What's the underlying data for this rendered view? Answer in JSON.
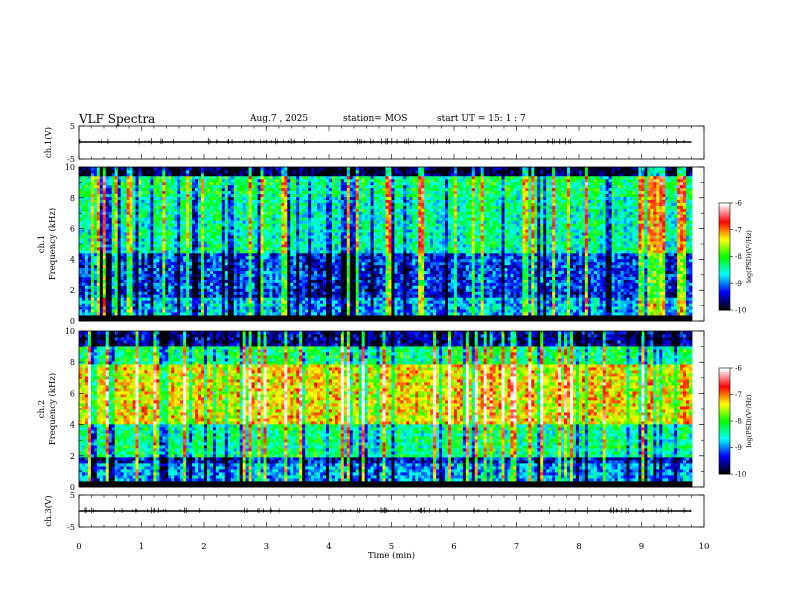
{
  "header": {
    "title": "VLF Spectra",
    "date": "Aug.7  , 2025",
    "station": "station= MOS",
    "start_ut": "start  UT  =   15: 1  : 7"
  },
  "colors": {
    "spectrogram_colormap": [
      "#000000",
      "#00007f",
      "#0000ff",
      "#0080ff",
      "#00ffff",
      "#00ff80",
      "#00ff00",
      "#80ff00",
      "#ffff00",
      "#ff8000",
      "#ff0000",
      "#ff8080",
      "#ffffff"
    ]
  },
  "chart_data": [
    {
      "type": "line",
      "name": "ch1-waveform",
      "ylabel": "ch.1(V)",
      "ylim": [
        -5,
        5
      ],
      "yticks": [
        "5",
        "-5"
      ],
      "x": [
        0,
        0.5,
        1,
        1.5,
        2,
        2.5,
        3,
        3.5,
        4,
        4.5,
        5,
        5.5,
        6,
        6.5,
        7,
        7.5,
        8,
        8.5,
        9,
        9.5,
        9.8
      ],
      "y": [
        0,
        0,
        0,
        0,
        0,
        0,
        0,
        0,
        0,
        0,
        0,
        0,
        0,
        0,
        0,
        0,
        0,
        0,
        0,
        0,
        0
      ]
    },
    {
      "type": "heatmap",
      "name": "ch1-spectrogram",
      "ylabel": "ch.1\nFrequency (kHz)",
      "ylim": [
        0,
        10
      ],
      "yticks": [
        "0",
        "2",
        "4",
        "6",
        "8",
        "10"
      ],
      "colorbar": {
        "label": "log(PSD)(V²/Hz)",
        "range": [
          -10,
          -6
        ],
        "ticks": [
          "-6",
          "-7",
          "-8",
          "-9",
          "-10"
        ]
      },
      "band_levels": [
        {
          "f_range": [
            0,
            0.3
          ],
          "level": -10
        },
        {
          "f_range": [
            0.3,
            1.6
          ],
          "level": -8.8
        },
        {
          "f_range": [
            1.6,
            2.2
          ],
          "level": -9.3
        },
        {
          "f_range": [
            2.2,
            4.5
          ],
          "level": -9.2
        },
        {
          "f_range": [
            4.5,
            8.0
          ],
          "level": -8.4
        },
        {
          "f_range": [
            8.0,
            9.4
          ],
          "level": -8.2
        },
        {
          "f_range": [
            9.4,
            10
          ],
          "level": -9.8
        }
      ]
    },
    {
      "type": "heatmap",
      "name": "ch2-spectrogram",
      "ylabel": "ch.2\nFrequency (kHz)",
      "ylim": [
        0,
        10
      ],
      "yticks": [
        "0",
        "2",
        "4",
        "6",
        "8",
        "10"
      ],
      "colorbar": {
        "label": "log(PSD)(V²/Hz)",
        "range": [
          -10,
          -6
        ],
        "ticks": [
          "-6",
          "-7",
          "-8",
          "-9",
          "-10"
        ]
      },
      "band_levels": [
        {
          "f_range": [
            0,
            0.3
          ],
          "level": -10
        },
        {
          "f_range": [
            0.3,
            1.5
          ],
          "level": -8.9
        },
        {
          "f_range": [
            1.5,
            2.0
          ],
          "level": -9.4
        },
        {
          "f_range": [
            2.0,
            4.0
          ],
          "level": -8.3
        },
        {
          "f_range": [
            4.0,
            7.8
          ],
          "level": -7.3
        },
        {
          "f_range": [
            7.8,
            9.0
          ],
          "level": -8.2
        },
        {
          "f_range": [
            9.0,
            10
          ],
          "level": -9.6
        }
      ]
    },
    {
      "type": "line",
      "name": "ch3-waveform",
      "ylabel": "ch.3(V)",
      "xlabel": "Time  (min)",
      "ylim": [
        -5,
        5
      ],
      "yticks": [
        "5",
        "-5"
      ],
      "xlim": [
        0,
        10
      ],
      "xticks": [
        "0",
        "1",
        "2",
        "3",
        "4",
        "5",
        "6",
        "7",
        "8",
        "9",
        "10"
      ],
      "x": [
        0,
        0.5,
        1,
        1.5,
        2,
        2.5,
        3,
        3.5,
        4,
        4.5,
        5,
        5.5,
        6,
        6.5,
        7,
        7.5,
        8,
        8.5,
        9,
        9.5,
        9.8
      ],
      "y": [
        0,
        0,
        0,
        0,
        0,
        0,
        0,
        0,
        0,
        0,
        0,
        0,
        0,
        0,
        0,
        0,
        0,
        0,
        0,
        0,
        0
      ]
    }
  ]
}
